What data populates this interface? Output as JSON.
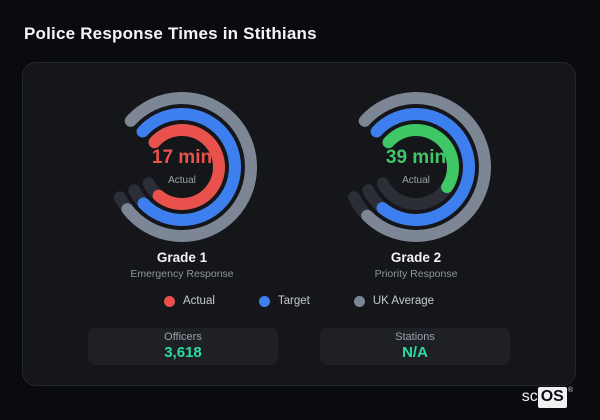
{
  "page": {
    "title": "Police Response Times in Stithians"
  },
  "legend": [
    {
      "label": "Actual",
      "color": "#e9514c"
    },
    {
      "label": "Target",
      "color": "#3e7ff0"
    },
    {
      "label": "UK Average",
      "color": "#7d8695"
    }
  ],
  "stats": [
    {
      "label": "Officers",
      "value": "3,618"
    },
    {
      "label": "Stations",
      "value": "N/A"
    }
  ],
  "colors": {
    "page_bg": "#0a0b0e",
    "card_bg": "#15161a",
    "track": "#2b2e36",
    "red": "#e9514c",
    "blue": "#3e7ff0",
    "gray": "#7d8695",
    "green": "#3fc765",
    "teal_value": "#2bdba4"
  },
  "chart_data": [
    {
      "type": "radial-gauge",
      "title": "Grade 1",
      "subtitle": "Emergency Response",
      "center_value": "17 min",
      "center_value_color": "#e9514c",
      "center_sublabel": "Actual",
      "start_angle": -48,
      "total_sweep": 292,
      "rings": [
        {
          "name": "UK Average",
          "color": "#7d8695",
          "fill": 0.96
        },
        {
          "name": "Target",
          "color": "#3e7ff0",
          "fill": 0.94
        },
        {
          "name": "Actual",
          "color": "#e9514c",
          "fill": 0.915
        }
      ]
    },
    {
      "type": "radial-gauge",
      "title": "Grade 2",
      "subtitle": "Priority Response",
      "center_value": "39 min",
      "center_value_color": "#3fc765",
      "center_sublabel": "Actual",
      "start_angle": -48,
      "total_sweep": 292,
      "rings": [
        {
          "name": "UK Average",
          "color": "#7d8695",
          "fill": 0.935
        },
        {
          "name": "Target",
          "color": "#3e7ff0",
          "fill": 0.915
        },
        {
          "name": "Actual",
          "color": "#3fc765",
          "fill": 0.585
        }
      ]
    }
  ]
}
